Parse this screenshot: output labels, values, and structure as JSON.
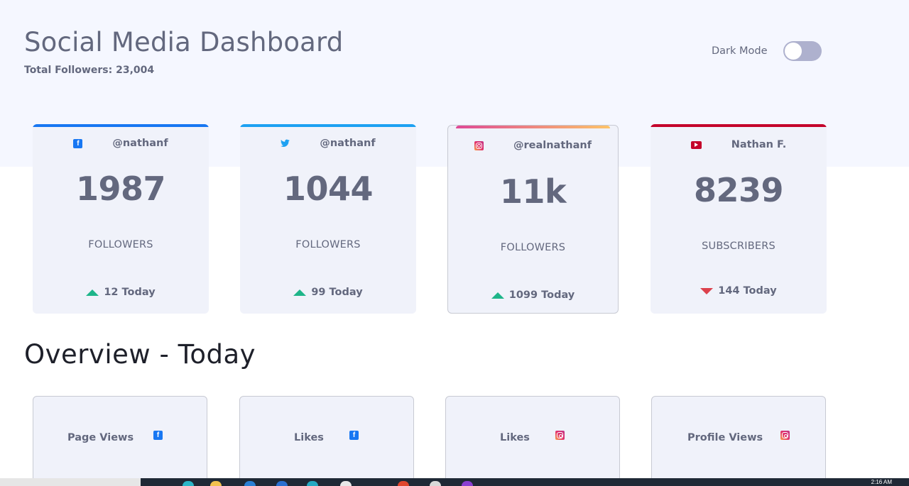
{
  "header": {
    "title": "Social Media Dashboard",
    "total_followers": "Total Followers: 23,004",
    "dark_mode_label": "Dark Mode",
    "dark_mode_on": false
  },
  "colors": {
    "facebook": "#1877f2",
    "twitter": "#1da1f2",
    "instagram_start": "#df4996",
    "instagram_end": "#fdc468",
    "youtube": "#c4032b",
    "up": "#1eb589",
    "down": "#dc414c"
  },
  "follower_cards": [
    {
      "platform_icon": "facebook-icon",
      "handle": "@nathanf",
      "count": "1987",
      "unit": "FOLLOWERS",
      "today": "12 Today",
      "trend": "up"
    },
    {
      "platform_icon": "twitter-icon",
      "handle": "@nathanf",
      "count": "1044",
      "unit": "FOLLOWERS",
      "today": "99 Today",
      "trend": "up"
    },
    {
      "platform_icon": "instagram-icon",
      "handle": "@realnathanf",
      "count": "11k",
      "unit": "FOLLOWERS",
      "today": "1099 Today",
      "trend": "up"
    },
    {
      "platform_icon": "youtube-icon",
      "handle": "Nathan F.",
      "count": "8239",
      "unit": "SUBSCRIBERS",
      "today": "144 Today",
      "trend": "down"
    }
  ],
  "overview": {
    "title": "Overview - Today",
    "cards": [
      {
        "label": "Page Views",
        "platform_icon": "facebook-icon"
      },
      {
        "label": "Likes",
        "platform_icon": "facebook-icon"
      },
      {
        "label": "Likes",
        "platform_icon": "instagram-icon"
      },
      {
        "label": "Profile Views",
        "platform_icon": "instagram-icon"
      }
    ]
  },
  "taskbar": {
    "clock": "2:16 AM"
  }
}
